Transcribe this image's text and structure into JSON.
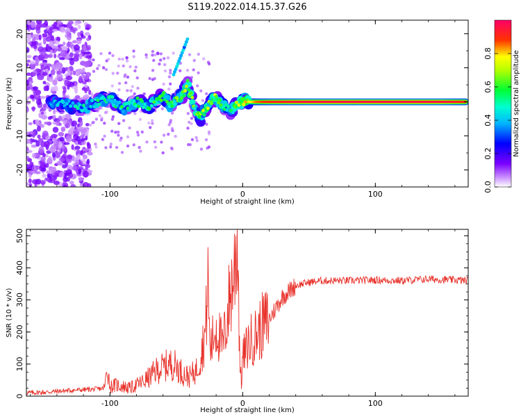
{
  "title": "S119.2022.014.15.37.G26",
  "chart_data": [
    {
      "type": "heatmap",
      "xlabel": "Height of straight line (km)",
      "ylabel": "Frequency (Hz)",
      "xlim": [
        -163,
        170
      ],
      "ylim": [
        -25,
        24
      ],
      "x_ticks": [
        -100,
        0,
        100
      ],
      "y_ticks": [
        -20,
        -10,
        0,
        10,
        20
      ],
      "colorbar": {
        "label": "Normalized spectral amplitude",
        "range": [
          0,
          1
        ],
        "ticks": [
          "0.0",
          "0.2",
          "0.4",
          "0.6",
          "0.8"
        ],
        "colormap": [
          "#ffffff",
          "#b36bff",
          "#7a00ff",
          "#0000ff",
          "#00d8ff",
          "#00ff33",
          "#ffff00",
          "#ff2a00",
          "#ff0066"
        ]
      },
      "ridge": {
        "x": [
          -145,
          -130,
          -120,
          -110,
          -100,
          -90,
          -80,
          -70,
          -60,
          -55,
          -50,
          -45,
          -42,
          -38,
          -35,
          -32,
          -28,
          -25,
          -20,
          -15,
          -10,
          -5,
          0,
          5,
          10,
          20,
          50,
          100,
          150,
          168
        ],
        "freq": [
          0,
          -1,
          -2,
          0,
          1,
          -2,
          0,
          -1,
          2,
          -1,
          1,
          2,
          6,
          1,
          -3,
          -5,
          -2,
          0,
          1,
          -1,
          -3,
          -1,
          0,
          0,
          0,
          0,
          0,
          0,
          0,
          0
        ],
        "amplitude": [
          0.35,
          0.4,
          0.4,
          0.45,
          0.5,
          0.5,
          0.5,
          0.5,
          0.55,
          0.5,
          0.55,
          0.6,
          0.65,
          0.6,
          0.55,
          0.6,
          0.6,
          0.65,
          0.65,
          0.6,
          0.5,
          0.6,
          0.7,
          0.75,
          0.85,
          0.9,
          0.95,
          0.95,
          0.95,
          0.9
        ]
      },
      "noise_region_x": [
        -163,
        -115
      ]
    },
    {
      "type": "line",
      "xlabel": "Height of straight line (km)",
      "ylabel": "SNR (10 * v/v)",
      "xlim": [
        -163,
        170
      ],
      "ylim": [
        0,
        520
      ],
      "x_ticks": [
        -100,
        0,
        100
      ],
      "y_ticks": [
        0,
        100,
        200,
        300,
        400,
        500
      ],
      "series": [
        {
          "color": "#e8312a",
          "x": [
            -163,
            -150,
            -140,
            -130,
            -120,
            -110,
            -104,
            -102,
            -100,
            -95,
            -90,
            -85,
            -80,
            -75,
            -70,
            -65,
            -60,
            -55,
            -50,
            -45,
            -40,
            -35,
            -32,
            -28,
            -26,
            -25,
            -24,
            -20,
            -15,
            -10,
            -6,
            -4,
            -2,
            -1,
            0,
            5,
            10,
            15,
            20,
            25,
            30,
            40,
            50,
            60,
            80,
            100,
            120,
            140,
            160,
            170
          ],
          "y": [
            10,
            12,
            15,
            18,
            20,
            22,
            25,
            95,
            30,
            35,
            30,
            25,
            35,
            45,
            60,
            80,
            90,
            100,
            95,
            70,
            60,
            80,
            120,
            200,
            370,
            180,
            150,
            220,
            150,
            300,
            400,
            520,
            100,
            40,
            120,
            170,
            190,
            220,
            240,
            275,
            310,
            345,
            355,
            360,
            360,
            362,
            360,
            365,
            362,
            360
          ]
        }
      ]
    }
  ]
}
